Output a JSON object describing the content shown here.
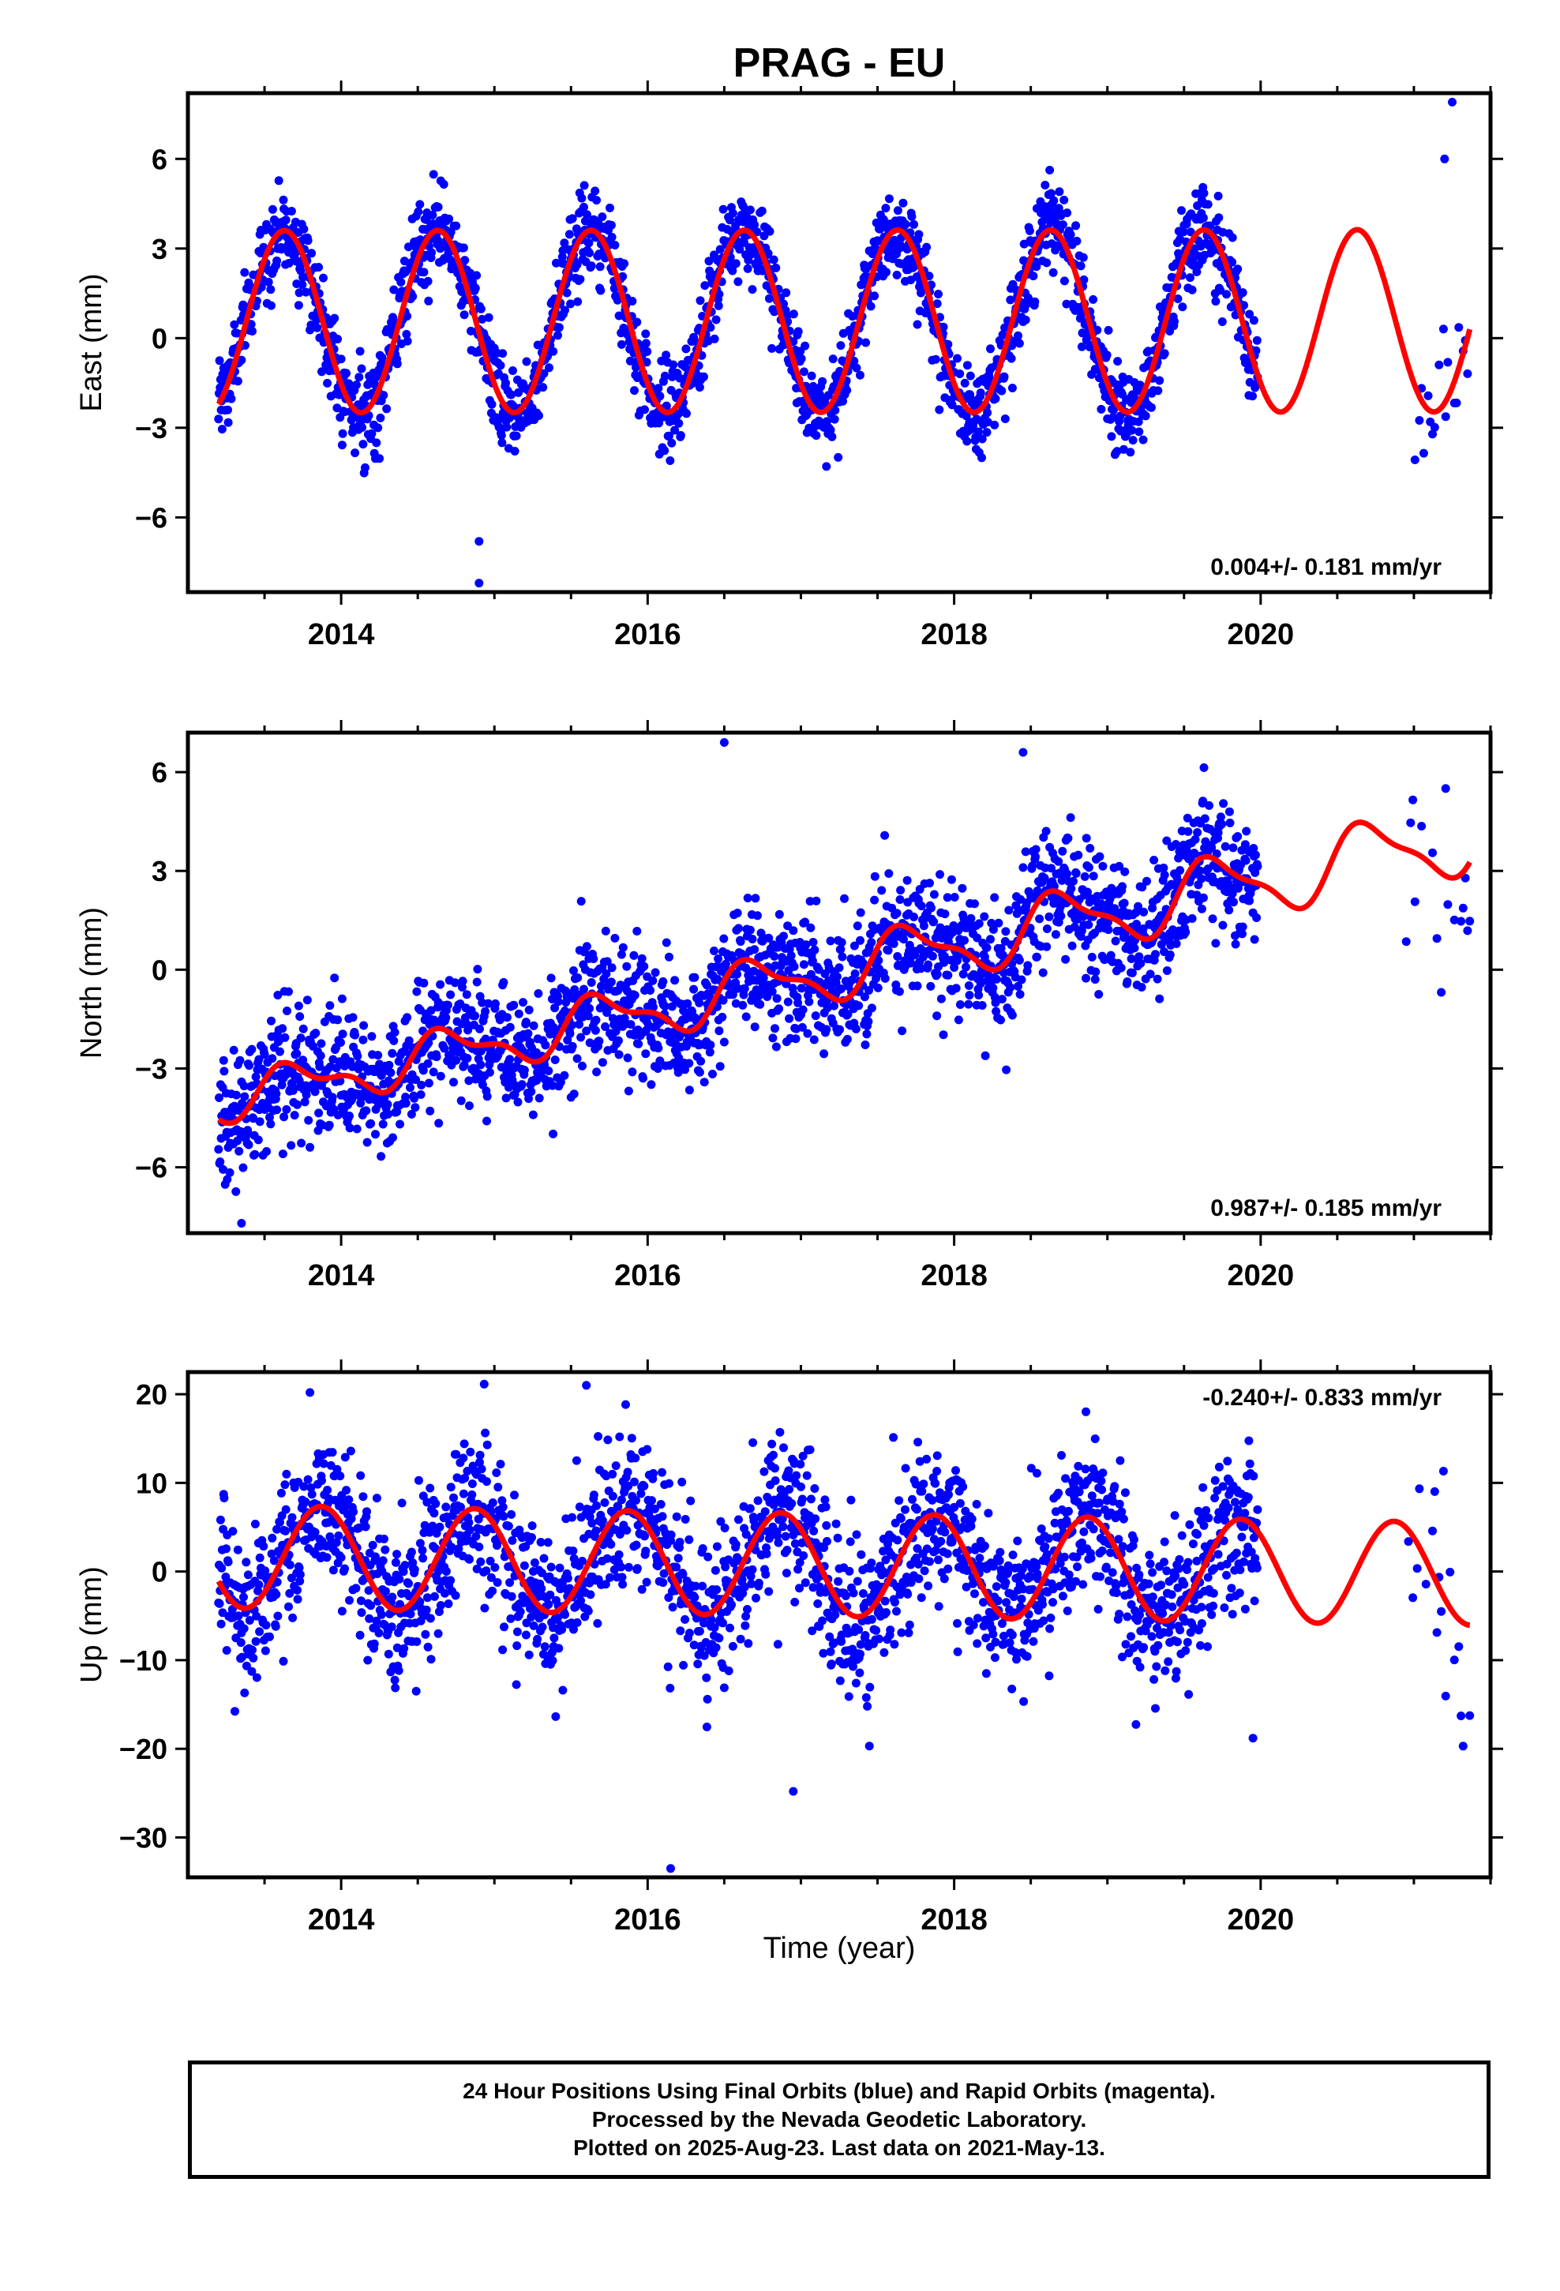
{
  "chart_data": {
    "type": "scatter",
    "title": "PRAG - EU",
    "xlabel": "Time (year)",
    "x_ticks": [
      2014,
      2016,
      2018,
      2020
    ],
    "xlim": [
      2013.0,
      2021.5
    ],
    "panels": [
      {
        "ylabel": "East (mm)",
        "ylim": [
          -8.5,
          8.2
        ],
        "yticks": [
          6,
          3,
          0,
          -3,
          -6
        ],
        "ytick_labels": [
          "6",
          "3",
          "0",
          "−3",
          "−6"
        ],
        "rate_text": "0.004+/- 0.181 mm/yr",
        "rate_position": "bottom-right",
        "model": {
          "offset": 0.55,
          "trend": 0.004,
          "amplitude": 3.05,
          "phase_year": 2013.38,
          "amp_growth": 0.0,
          "semi_amplitude": 0.0
        },
        "noise_sd": 0.75,
        "outliers": [
          [
            2014.9,
            -6.8
          ],
          [
            2014.9,
            -8.2
          ],
          [
            2021.25,
            7.9
          ],
          [
            2021.2,
            6.0
          ]
        ]
      },
      {
        "ylabel": "North (mm)",
        "ylim": [
          -8.0,
          7.2
        ],
        "yticks": [
          6,
          3,
          0,
          -3,
          -6
        ],
        "ytick_labels": [
          "6",
          "3",
          "0",
          "−3",
          "−6"
        ],
        "rate_text": "0.987+/- 0.185 mm/yr",
        "rate_position": "bottom-right",
        "model": {
          "offset": -4.0,
          "trend": 0.987,
          "amplitude": 0.55,
          "phase_year": 2013.45,
          "amp_growth": 0.06,
          "semi_amplitude": 0.3
        },
        "noise_sd": 0.95,
        "outliers": [
          [
            2016.5,
            6.9
          ],
          [
            2018.45,
            6.6
          ],
          [
            2013.35,
            -7.7
          ]
        ]
      },
      {
        "ylabel": "Up (mm)",
        "ylim": [
          -34.5,
          22.5
        ],
        "yticks": [
          20,
          10,
          0,
          -10,
          -20,
          -30
        ],
        "ytick_labels": [
          "20",
          "10",
          "0",
          "−10",
          "−20",
          "−30"
        ],
        "rate_text": "-0.240+/- 0.833 mm/yr",
        "rate_position": "top-right",
        "model": {
          "offset": 1.7,
          "trend": -0.24,
          "amplitude": 5.8,
          "phase_year": 2013.62,
          "amp_growth": 0.0,
          "semi_amplitude": 0.0
        },
        "noise_sd": 4.5,
        "outliers": [
          [
            2016.15,
            -33.5
          ],
          [
            2015.6,
            21.0
          ],
          [
            2016.95,
            -24.8
          ],
          [
            2019.95,
            -18.8
          ]
        ]
      }
    ],
    "series": [
      {
        "name": "Final Orbits",
        "type": "scatter",
        "color": "#0000ff",
        "segments": [
          [
            2013.2,
            2019.98
          ],
          [
            2020.95,
            2021.37
          ]
        ]
      },
      {
        "name": "Model fit",
        "type": "line",
        "color": "#ff0000",
        "range": [
          2013.2,
          2021.37
        ]
      }
    ],
    "grid": false,
    "legend": "none"
  },
  "footer": {
    "line1": "24 Hour Positions Using Final Orbits (blue) and Rapid Orbits (magenta).",
    "line2": "Processed by the Nevada Geodetic Laboratory.",
    "line3": "Plotted on 2025-Aug-23. Last data on 2021-May-13."
  }
}
